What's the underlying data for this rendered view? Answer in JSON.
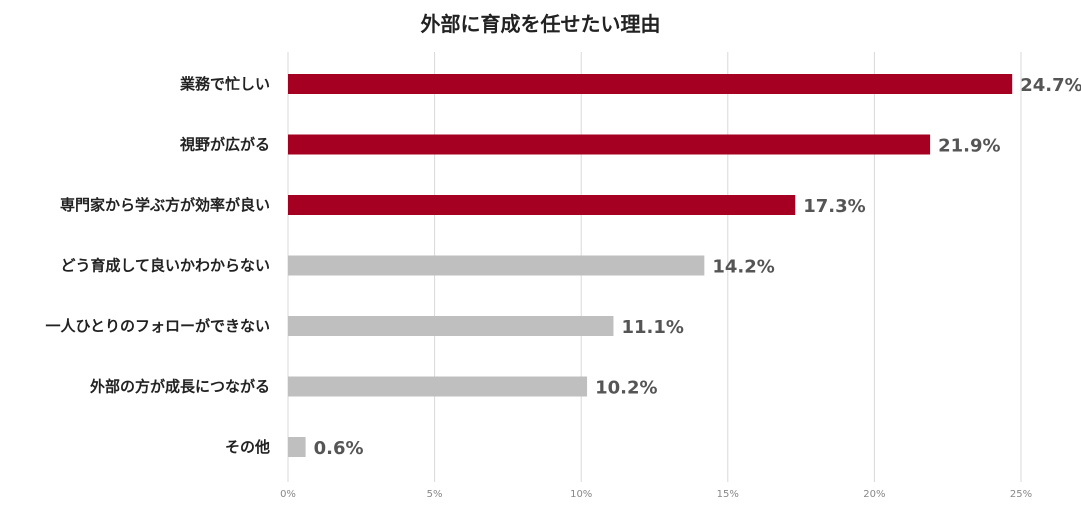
{
  "chart_data": {
    "type": "bar",
    "orientation": "horizontal",
    "title": "外部に育成を任せたい理由",
    "categories": [
      "業務で忙しい",
      "視野が広がる",
      "専門家から学ぶ方が効率が良い",
      "どう育成して良いかわからない",
      "一人ひとりのフォローができない",
      "外部の方が成長につながる",
      "その他"
    ],
    "values": [
      24.7,
      21.9,
      17.3,
      14.2,
      11.1,
      10.2,
      0.6
    ],
    "value_labels": [
      "24.7%",
      "21.9%",
      "17.3%",
      "14.2%",
      "11.1%",
      "10.2%",
      "0.6%"
    ],
    "highlighted": [
      true,
      true,
      true,
      false,
      false,
      false,
      false
    ],
    "xlim": [
      0,
      25
    ],
    "xticks": [
      0,
      5,
      10,
      15,
      20,
      25
    ],
    "xtick_labels": [
      "0%",
      "5%",
      "10%",
      "15%",
      "20%",
      "25%"
    ],
    "xlabel": "",
    "ylabel": "",
    "grid": "vertical",
    "legend": "none",
    "colors": {
      "highlight": "#a50021",
      "normal": "#bfbfbf",
      "grid": "#d9d9d9"
    }
  }
}
